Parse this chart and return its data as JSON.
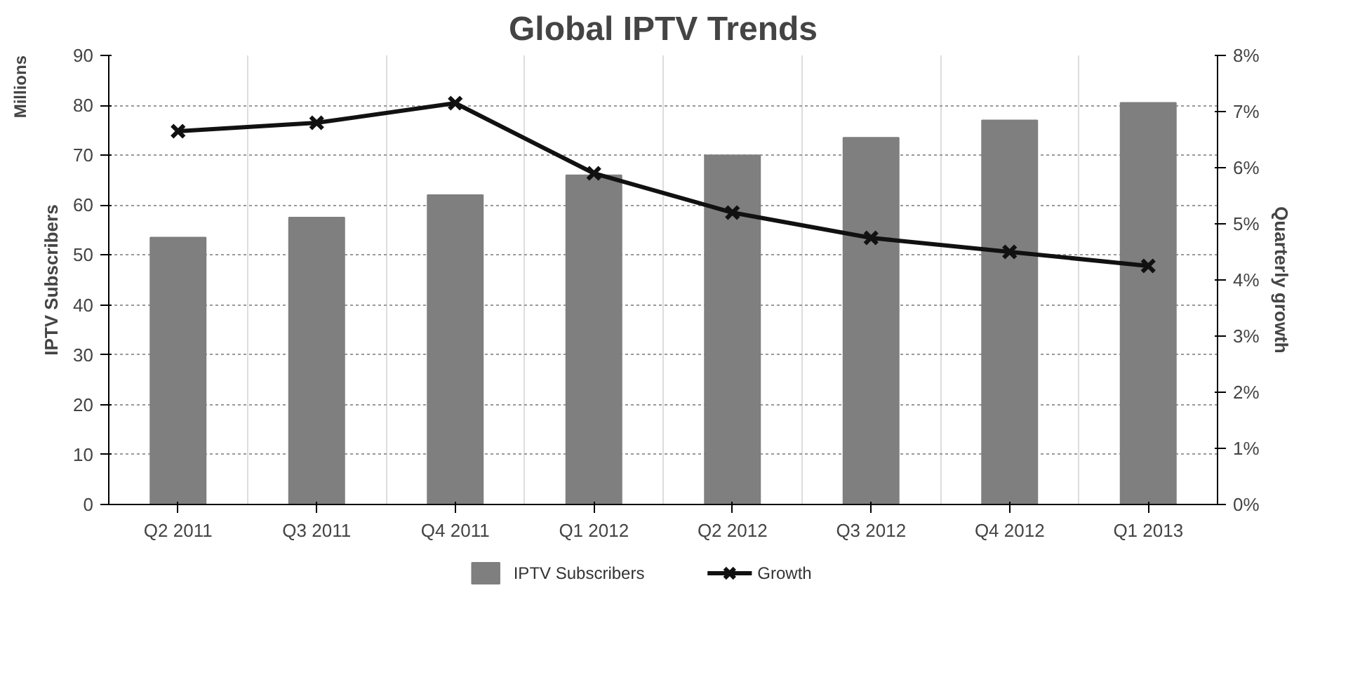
{
  "chart_data": {
    "type": "bar",
    "title": "Global IPTV Trends",
    "ylabel": "IPTV Subscribers",
    "y2label": "Quarterly growth",
    "annotations": [
      "Millions"
    ],
    "categories": [
      "Q2 2011",
      "Q3 2011",
      "Q4 2011",
      "Q1 2012",
      "Q2 2012",
      "Q3 2012",
      "Q4 2012",
      "Q1 2013"
    ],
    "series": [
      {
        "name": "IPTV Subscribers",
        "color": "#7f7f7f",
        "values": [
          53.5,
          57.5,
          62,
          66,
          70,
          73.5,
          77,
          80.5
        ]
      },
      {
        "name": "Growth",
        "type": "line",
        "axis": "y2",
        "color": "#111111",
        "marker": "cross",
        "line_style": "solid",
        "values": [
          6.65,
          6.8,
          7.15,
          5.9,
          5.2,
          4.75,
          4.5,
          4.25
        ]
      }
    ],
    "ylim": [
      0,
      90
    ],
    "yticks": [
      0,
      10,
      20,
      30,
      40,
      50,
      60,
      70,
      80,
      90
    ],
    "y2lim": [
      0,
      8
    ],
    "y2ticks": [
      {
        "value": 0,
        "label": "0%"
      },
      {
        "value": 1,
        "label": "1%"
      },
      {
        "value": 2,
        "label": "2%"
      },
      {
        "value": 3,
        "label": "3%"
      },
      {
        "value": 4,
        "label": "4%"
      },
      {
        "value": 5,
        "label": "5%"
      },
      {
        "value": 6,
        "label": "6%"
      },
      {
        "value": 7,
        "label": "7%"
      },
      {
        "value": 8,
        "label": "8%"
      }
    ],
    "grid": true,
    "legend": "bottom"
  }
}
